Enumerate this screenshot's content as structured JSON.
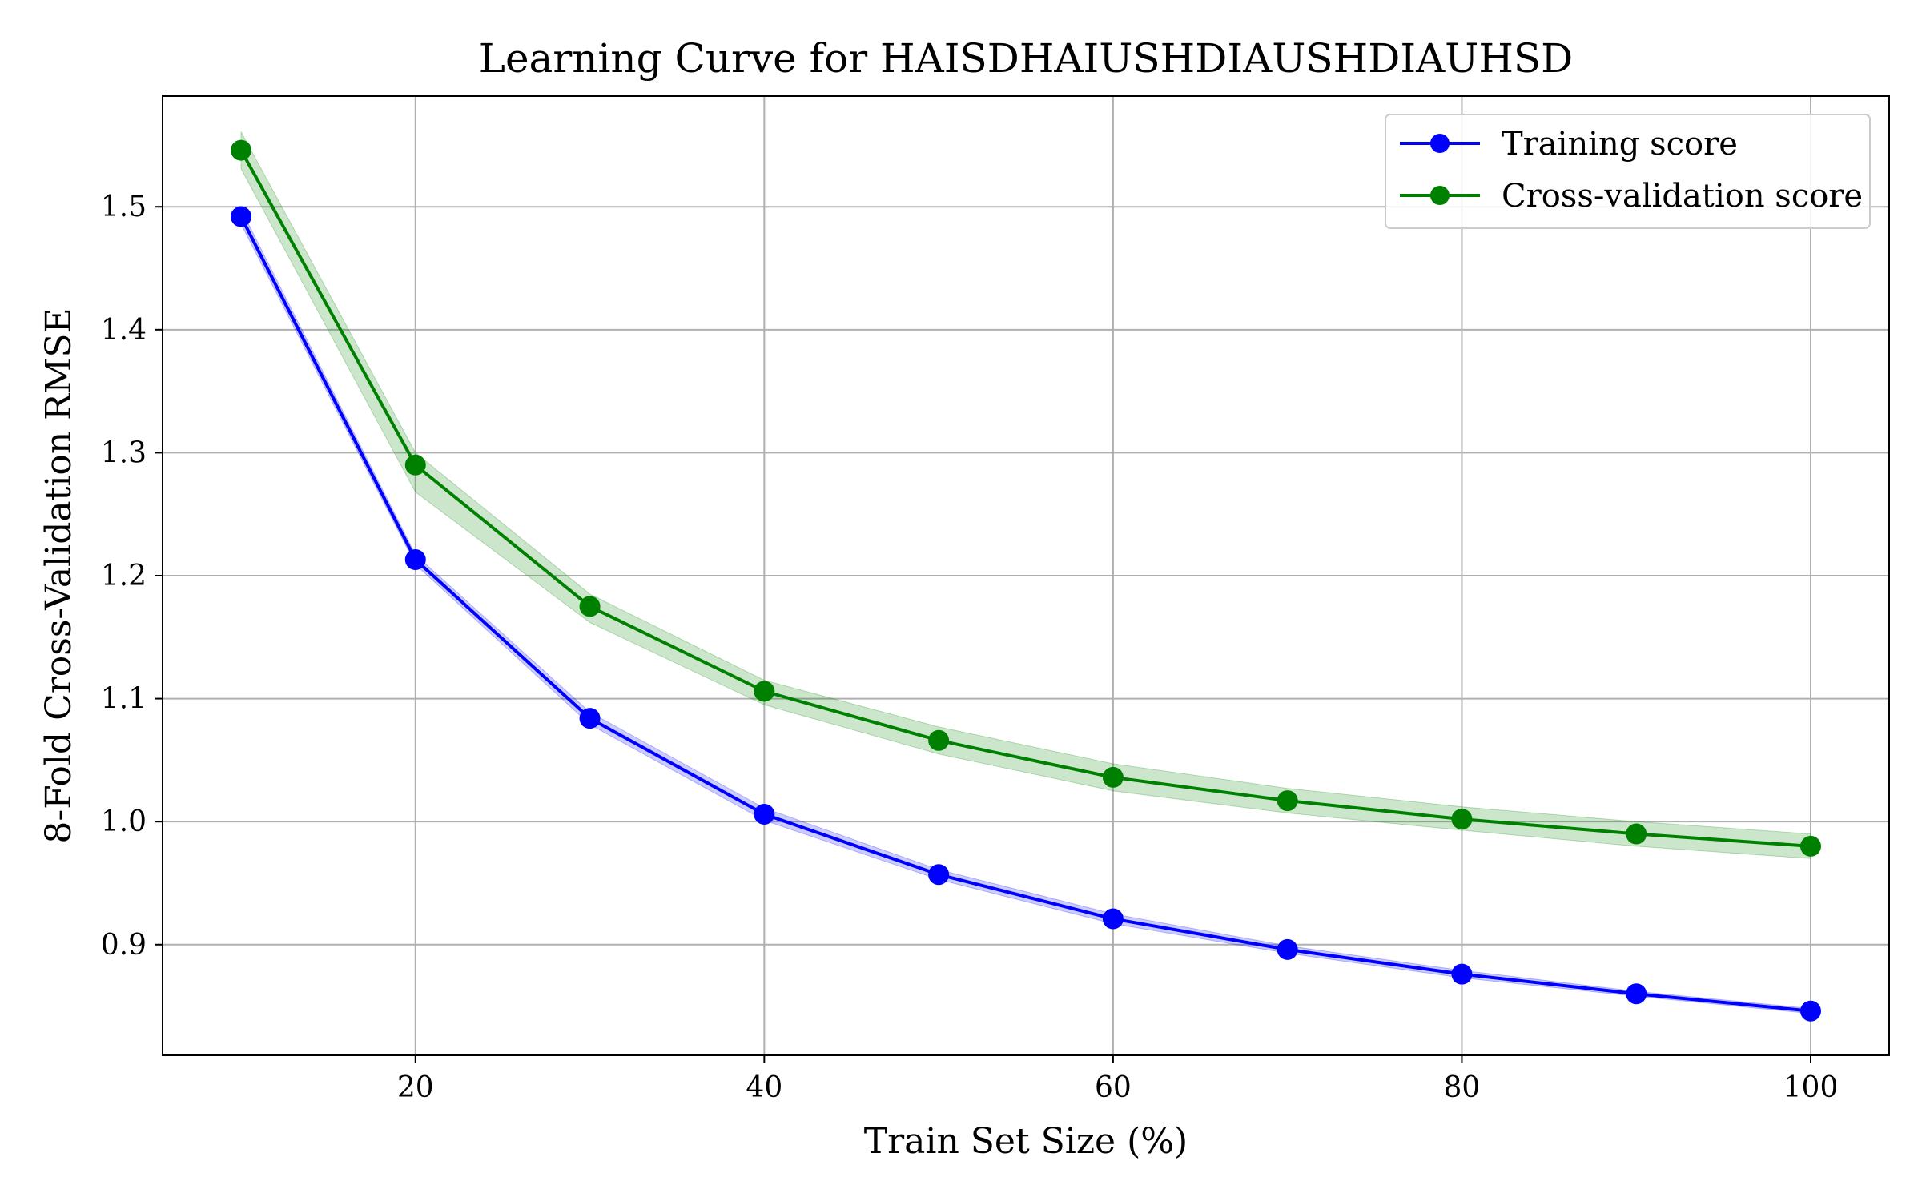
{
  "chart_data": {
    "type": "line",
    "title": "Learning Curve for HAISDHAIUSHDIAUSHDIAUHSD",
    "xlabel": "Train Set Size (%)",
    "ylabel": "8-Fold Cross-Validation RMSE",
    "xlim": [
      5.5,
      104.5
    ],
    "ylim": [
      0.81,
      1.59
    ],
    "xticks": [
      20,
      40,
      60,
      80,
      100
    ],
    "xtick_labels": [
      "20",
      "40",
      "60",
      "80",
      "100"
    ],
    "yticks": [
      0.9,
      1.0,
      1.1,
      1.2,
      1.3,
      1.4,
      1.5
    ],
    "ytick_labels": [
      "0.9",
      "1.0",
      "1.1",
      "1.2",
      "1.3",
      "1.4",
      "1.5"
    ],
    "grid": true,
    "legend_position": "top-right",
    "x": [
      10,
      20,
      30,
      40,
      50,
      60,
      70,
      80,
      90,
      100
    ],
    "series": [
      {
        "name": "Training score",
        "color": "#0000ff",
        "band_color": "#0000ff",
        "values": [
          1.492,
          1.213,
          1.084,
          1.006,
          0.957,
          0.921,
          0.896,
          0.876,
          0.86,
          0.846
        ],
        "lower": [
          1.486,
          1.209,
          1.079,
          1.001,
          0.953,
          0.917,
          0.893,
          0.873,
          0.858,
          0.844
        ],
        "upper": [
          1.498,
          1.217,
          1.089,
          1.011,
          0.961,
          0.925,
          0.899,
          0.879,
          0.862,
          0.848
        ]
      },
      {
        "name": "Cross-validation score",
        "color": "#008000",
        "band_color": "#008000",
        "values": [
          1.546,
          1.29,
          1.175,
          1.106,
          1.066,
          1.036,
          1.017,
          1.002,
          0.99,
          0.98
        ],
        "lower": [
          1.531,
          1.268,
          1.162,
          1.095,
          1.055,
          1.025,
          1.007,
          0.993,
          0.98,
          0.97
        ],
        "upper": [
          1.561,
          1.3,
          1.185,
          1.115,
          1.077,
          1.047,
          1.027,
          1.012,
          1.0,
          0.99
        ]
      }
    ]
  }
}
